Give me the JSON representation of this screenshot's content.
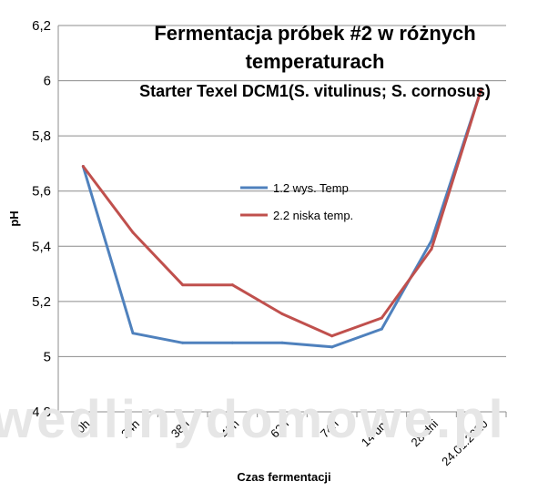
{
  "chart_data": {
    "type": "line",
    "title_line1": "Fermentacja próbek #2 w różnych",
    "title_line2": "temperaturach",
    "subtitle": "Starter Texel DCM1(S. vitulinus; S. cornosus)",
    "xlabel": "Czas fermentacji",
    "ylabel": "pH",
    "categories": [
      "0h",
      "24h",
      "38h",
      "48h",
      "62h",
      "74h",
      "14 dni",
      "28 dni",
      "24.01.2020"
    ],
    "ylim": [
      4.8,
      6.2
    ],
    "yticks": [
      "4,8",
      "5",
      "5,2",
      "5,4",
      "5,6",
      "5,8",
      "6",
      "6,2"
    ],
    "ytick_values": [
      4.8,
      5.0,
      5.2,
      5.4,
      5.6,
      5.8,
      6.0,
      6.2
    ],
    "grid": true,
    "legend_position": "center-right",
    "series": [
      {
        "name": "1.2 wys. Temp",
        "color": "#4f81bd",
        "values": [
          5.69,
          5.085,
          5.05,
          5.05,
          5.05,
          5.035,
          5.1,
          5.42,
          5.97
        ]
      },
      {
        "name": "2.2 niska temp.",
        "color": "#c0504d",
        "values": [
          5.69,
          5.45,
          5.26,
          5.26,
          5.155,
          5.075,
          5.14,
          5.39,
          5.97
        ]
      }
    ],
    "watermark": "wedlinydomowe.pl"
  }
}
